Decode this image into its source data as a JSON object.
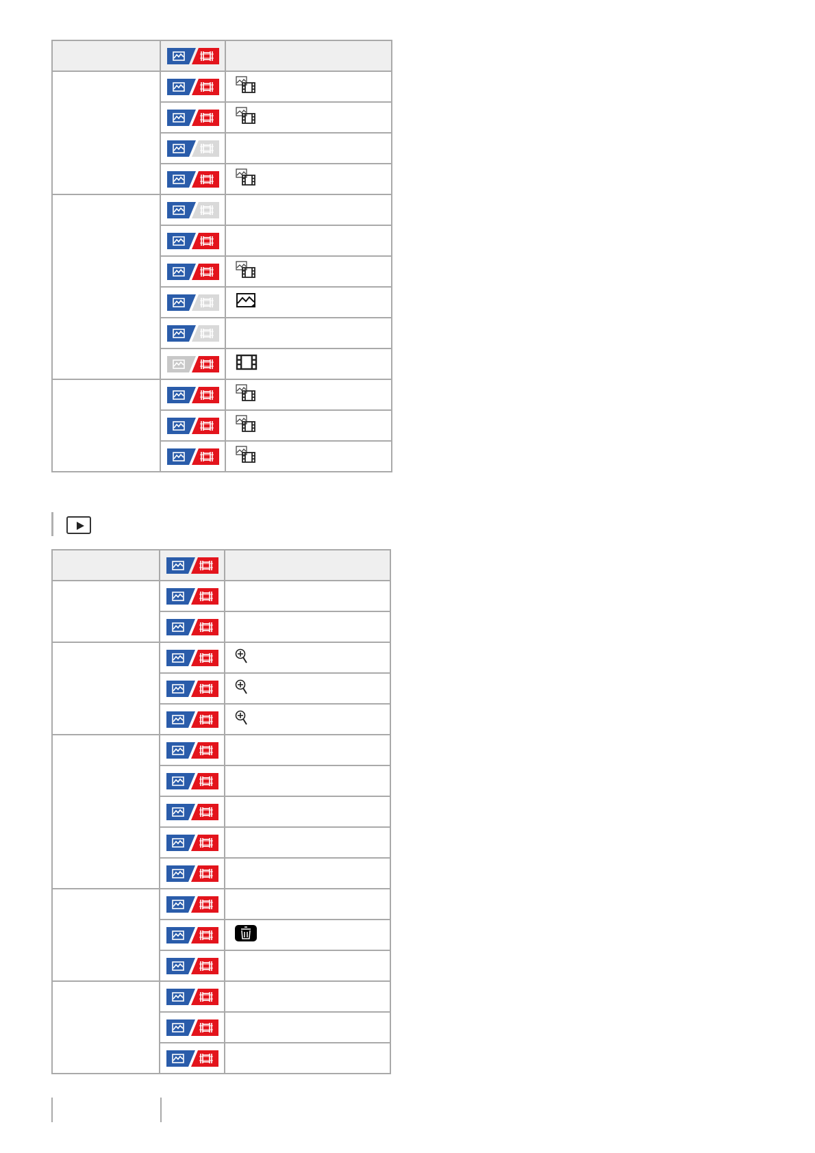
{
  "colors": {
    "still": "#2a5caa",
    "movie": "#e3141c",
    "disabled": "#d9d9d9",
    "border": "#a9a9a9",
    "header_bg": "#efefef"
  },
  "section_icon": "playback-icon",
  "table1": {
    "header_badge": {
      "still": true,
      "movie": true
    },
    "groups": [
      {
        "rows": [
          {
            "still": true,
            "movie": true,
            "icon": "still-movie-icon"
          },
          {
            "still": true,
            "movie": true,
            "icon": "still-movie-icon"
          },
          {
            "still": true,
            "movie": false,
            "icon": ""
          },
          {
            "still": true,
            "movie": true,
            "icon": "still-movie-icon"
          }
        ]
      },
      {
        "rows": [
          {
            "still": true,
            "movie": false,
            "icon": ""
          },
          {
            "still": true,
            "movie": true,
            "icon": ""
          },
          {
            "still": true,
            "movie": true,
            "icon": "still-movie-icon"
          },
          {
            "still": true,
            "movie": false,
            "icon": "still-icon"
          },
          {
            "still": true,
            "movie": false,
            "icon": ""
          },
          {
            "still": false,
            "movie": true,
            "icon": "movie-icon"
          }
        ]
      },
      {
        "rows": [
          {
            "still": true,
            "movie": true,
            "icon": "still-movie-icon"
          },
          {
            "still": true,
            "movie": true,
            "icon": "still-movie-icon"
          },
          {
            "still": true,
            "movie": true,
            "icon": "still-movie-icon"
          }
        ]
      }
    ]
  },
  "table2": {
    "header_badge": {
      "still": true,
      "movie": true
    },
    "groups": [
      {
        "rows": [
          {
            "still": true,
            "movie": true,
            "icon": ""
          },
          {
            "still": true,
            "movie": true,
            "icon": ""
          }
        ]
      },
      {
        "rows": [
          {
            "still": true,
            "movie": true,
            "icon": "zoom-in-icon"
          },
          {
            "still": true,
            "movie": true,
            "icon": "zoom-in-icon"
          },
          {
            "still": true,
            "movie": true,
            "icon": "zoom-in-icon"
          }
        ]
      },
      {
        "rows": [
          {
            "still": true,
            "movie": true,
            "icon": ""
          },
          {
            "still": true,
            "movie": true,
            "icon": ""
          },
          {
            "still": true,
            "movie": true,
            "icon": ""
          },
          {
            "still": true,
            "movie": true,
            "icon": ""
          },
          {
            "still": true,
            "movie": true,
            "icon": ""
          }
        ]
      },
      {
        "rows": [
          {
            "still": true,
            "movie": true,
            "icon": ""
          },
          {
            "still": true,
            "movie": true,
            "icon": "trash-icon"
          },
          {
            "still": true,
            "movie": true,
            "icon": ""
          }
        ]
      },
      {
        "rows": [
          {
            "still": true,
            "movie": true,
            "icon": ""
          },
          {
            "still": true,
            "movie": true,
            "icon": ""
          },
          {
            "still": true,
            "movie": true,
            "icon": ""
          }
        ]
      }
    ]
  }
}
